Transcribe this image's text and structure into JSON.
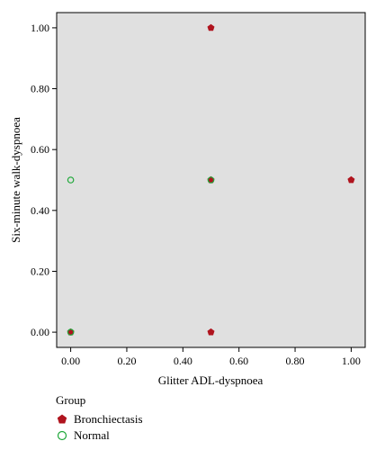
{
  "chart_data": {
    "type": "scatter",
    "xlabel": "Glitter ADL-dyspnoea",
    "ylabel": "Six-minute walk-dyspnoea",
    "xlim": [
      -0.05,
      1.05
    ],
    "ylim": [
      -0.05,
      1.05
    ],
    "xticks": [
      "0.00",
      "0.20",
      "0.40",
      "0.60",
      "0.80",
      "1.00"
    ],
    "yticks": [
      "0.00",
      "0.20",
      "0.40",
      "0.60",
      "0.80",
      "1.00"
    ],
    "grid": false,
    "background": "#e0e0e0",
    "legend": {
      "title": "Group",
      "position": "bottom-left"
    },
    "series": [
      {
        "name": "Bronchiectasis",
        "marker": "pentagon",
        "color": "#b0141e",
        "points": [
          {
            "x": 0.5,
            "y": 1.0
          },
          {
            "x": 0.5,
            "y": 0.5
          },
          {
            "x": 1.0,
            "y": 0.5
          },
          {
            "x": 0.0,
            "y": 0.0
          },
          {
            "x": 0.5,
            "y": 0.0
          }
        ]
      },
      {
        "name": "Normal",
        "marker": "open-circle",
        "color": "#1fa83a",
        "points": [
          {
            "x": 0.0,
            "y": 0.5
          },
          {
            "x": 0.5,
            "y": 0.5
          },
          {
            "x": 0.0,
            "y": 0.0
          }
        ]
      }
    ]
  }
}
